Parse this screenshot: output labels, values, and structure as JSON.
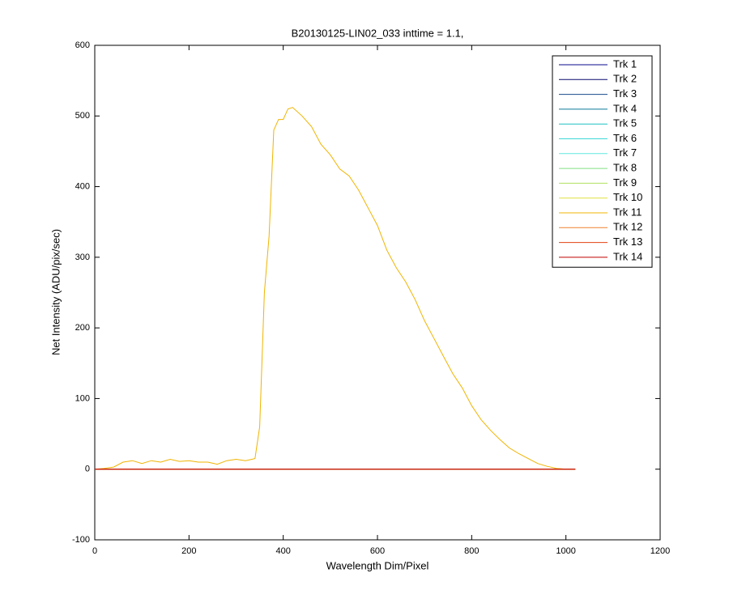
{
  "chart_data": {
    "type": "line",
    "title": "B20130125-LIN02_033 inttime = 1.1,",
    "x_label": "Wavelength Dim/Pixel",
    "y_label": "Net Intensity (ADU/pix/sec)",
    "xlim": [
      0,
      1200
    ],
    "xticks": [
      0,
      200,
      400,
      600,
      800,
      1000,
      1200
    ],
    "ylim": [
      -100,
      600
    ],
    "yticks": [
      -100,
      0,
      100,
      200,
      300,
      400,
      500,
      600
    ],
    "legend": "top-right",
    "x": [
      0,
      20,
      40,
      60,
      80,
      100,
      120,
      140,
      160,
      180,
      200,
      220,
      240,
      260,
      280,
      300,
      320,
      340,
      350,
      360,
      370,
      380,
      390,
      400,
      410,
      420,
      440,
      460,
      480,
      500,
      520,
      540,
      560,
      580,
      600,
      620,
      640,
      660,
      680,
      700,
      720,
      740,
      760,
      780,
      800,
      820,
      840,
      860,
      880,
      900,
      920,
      940,
      960,
      980,
      1000,
      1020
    ],
    "series": [
      {
        "name": "Trk 1",
        "color": "#0a0a8c",
        "values": [
          0,
          0,
          0,
          0,
          0,
          0,
          0,
          0,
          0,
          0,
          0,
          0,
          0,
          0,
          0,
          0,
          0,
          0,
          0,
          0,
          0,
          0,
          0,
          0,
          0,
          0,
          0,
          0,
          0,
          0,
          0,
          0,
          0,
          0,
          0,
          0,
          0,
          0,
          0,
          0,
          0,
          0,
          0,
          0,
          0,
          0,
          0,
          0,
          0,
          0,
          0,
          0,
          0,
          0,
          0,
          0
        ]
      },
      {
        "name": "Trk 2",
        "color": "#0a0a70",
        "values": [
          0,
          0,
          0,
          0,
          0,
          0,
          0,
          0,
          0,
          0,
          0,
          0,
          0,
          0,
          0,
          0,
          0,
          0,
          0,
          0,
          0,
          0,
          0,
          0,
          0,
          0,
          0,
          0,
          0,
          0,
          0,
          0,
          0,
          0,
          0,
          0,
          0,
          0,
          0,
          0,
          0,
          0,
          0,
          0,
          0,
          0,
          0,
          0,
          0,
          0,
          0,
          0,
          0,
          0,
          0,
          0
        ]
      },
      {
        "name": "Trk 3",
        "color": "#1a4a8a",
        "values": [
          0,
          0,
          0,
          0,
          0,
          0,
          0,
          0,
          0,
          0,
          0,
          0,
          0,
          0,
          0,
          0,
          0,
          0,
          0,
          0,
          0,
          0,
          0,
          0,
          0,
          0,
          0,
          0,
          0,
          0,
          0,
          0,
          0,
          0,
          0,
          0,
          0,
          0,
          0,
          0,
          0,
          0,
          0,
          0,
          0,
          0,
          0,
          0,
          0,
          0,
          0,
          0,
          0,
          0,
          0,
          0
        ]
      },
      {
        "name": "Trk 4",
        "color": "#0a7a9a",
        "values": [
          0,
          0,
          0,
          0,
          0,
          0,
          0,
          0,
          0,
          0,
          0,
          0,
          0,
          0,
          0,
          0,
          0,
          0,
          0,
          0,
          0,
          0,
          0,
          0,
          0,
          0,
          0,
          0,
          0,
          0,
          0,
          0,
          0,
          0,
          0,
          0,
          0,
          0,
          0,
          0,
          0,
          0,
          0,
          0,
          0,
          0,
          0,
          0,
          0,
          0,
          0,
          0,
          0,
          0,
          0,
          0
        ]
      },
      {
        "name": "Trk 5",
        "color": "#20c0c0",
        "values": [
          0,
          0,
          0,
          0,
          0,
          0,
          0,
          0,
          0,
          0,
          0,
          0,
          0,
          0,
          0,
          0,
          0,
          0,
          0,
          0,
          0,
          0,
          0,
          0,
          0,
          0,
          0,
          0,
          0,
          0,
          0,
          0,
          0,
          0,
          0,
          0,
          0,
          0,
          0,
          0,
          0,
          0,
          0,
          0,
          0,
          0,
          0,
          0,
          0,
          0,
          0,
          0,
          0,
          0,
          0,
          0
        ]
      },
      {
        "name": "Trk 6",
        "color": "#40d8d8",
        "values": [
          0,
          0,
          0,
          0,
          0,
          0,
          0,
          0,
          0,
          0,
          0,
          0,
          0,
          0,
          0,
          0,
          0,
          0,
          0,
          0,
          0,
          0,
          0,
          0,
          0,
          0,
          0,
          0,
          0,
          0,
          0,
          0,
          0,
          0,
          0,
          0,
          0,
          0,
          0,
          0,
          0,
          0,
          0,
          0,
          0,
          0,
          0,
          0,
          0,
          0,
          0,
          0,
          0,
          0,
          0,
          0
        ]
      },
      {
        "name": "Trk 7",
        "color": "#60e8e0",
        "values": [
          0,
          0,
          0,
          0,
          0,
          0,
          0,
          0,
          0,
          0,
          0,
          0,
          0,
          0,
          0,
          0,
          0,
          0,
          0,
          0,
          0,
          0,
          0,
          0,
          0,
          0,
          0,
          0,
          0,
          0,
          0,
          0,
          0,
          0,
          0,
          0,
          0,
          0,
          0,
          0,
          0,
          0,
          0,
          0,
          0,
          0,
          0,
          0,
          0,
          0,
          0,
          0,
          0,
          0,
          0,
          0
        ]
      },
      {
        "name": "Trk 8",
        "color": "#80e080",
        "values": [
          0,
          0,
          0,
          0,
          0,
          0,
          0,
          0,
          0,
          0,
          0,
          0,
          0,
          0,
          0,
          0,
          0,
          0,
          0,
          0,
          0,
          0,
          0,
          0,
          0,
          0,
          0,
          0,
          0,
          0,
          0,
          0,
          0,
          0,
          0,
          0,
          0,
          0,
          0,
          0,
          0,
          0,
          0,
          0,
          0,
          0,
          0,
          0,
          0,
          0,
          0,
          0,
          0,
          0,
          0,
          0
        ]
      },
      {
        "name": "Trk 9",
        "color": "#b0e060",
        "values": [
          0,
          0,
          0,
          0,
          0,
          0,
          0,
          0,
          0,
          0,
          0,
          0,
          0,
          0,
          0,
          0,
          0,
          0,
          0,
          0,
          0,
          0,
          0,
          0,
          0,
          0,
          0,
          0,
          0,
          0,
          0,
          0,
          0,
          0,
          0,
          0,
          0,
          0,
          0,
          0,
          0,
          0,
          0,
          0,
          0,
          0,
          0,
          0,
          0,
          0,
          0,
          0,
          0,
          0,
          0,
          0
        ]
      },
      {
        "name": "Trk 10",
        "color": "#e0e040",
        "values": [
          0,
          0,
          0,
          0,
          0,
          0,
          0,
          0,
          0,
          0,
          0,
          0,
          0,
          0,
          0,
          0,
          0,
          0,
          0,
          0,
          0,
          0,
          0,
          0,
          0,
          0,
          0,
          0,
          0,
          0,
          0,
          0,
          0,
          0,
          0,
          0,
          0,
          0,
          0,
          0,
          0,
          0,
          0,
          0,
          0,
          0,
          0,
          0,
          0,
          0,
          0,
          0,
          0,
          0,
          0,
          0
        ]
      },
      {
        "name": "Trk 11",
        "color": "#f0b400",
        "values": [
          0,
          1,
          3,
          10,
          12,
          8,
          12,
          10,
          14,
          11,
          12,
          10,
          10,
          7,
          12,
          14,
          12,
          15,
          60,
          250,
          330,
          480,
          495,
          495,
          510,
          512,
          500,
          485,
          460,
          445,
          425,
          415,
          395,
          370,
          345,
          310,
          285,
          265,
          240,
          210,
          185,
          160,
          135,
          115,
          90,
          70,
          55,
          42,
          30,
          22,
          15,
          8,
          4,
          1,
          0,
          0
        ]
      },
      {
        "name": "Trk 12",
        "color": "#f08030",
        "values": [
          0,
          0,
          0,
          0,
          0,
          0,
          0,
          0,
          0,
          0,
          0,
          0,
          0,
          0,
          0,
          0,
          0,
          0,
          0,
          0,
          0,
          0,
          0,
          0,
          0,
          0,
          0,
          0,
          0,
          0,
          0,
          0,
          0,
          0,
          0,
          0,
          0,
          0,
          0,
          0,
          0,
          0,
          0,
          0,
          0,
          0,
          0,
          0,
          0,
          0,
          0,
          0,
          0,
          0,
          0,
          0
        ]
      },
      {
        "name": "Trk 13",
        "color": "#e04010",
        "values": [
          0,
          0,
          0,
          0,
          0,
          0,
          0,
          0,
          0,
          0,
          0,
          0,
          0,
          0,
          0,
          0,
          0,
          0,
          0,
          0,
          0,
          0,
          0,
          0,
          0,
          0,
          0,
          0,
          0,
          0,
          0,
          0,
          0,
          0,
          0,
          0,
          0,
          0,
          0,
          0,
          0,
          0,
          0,
          0,
          0,
          0,
          0,
          0,
          0,
          0,
          0,
          0,
          0,
          0,
          0,
          0
        ]
      },
      {
        "name": "Trk 14",
        "color": "#c00000",
        "values": [
          0,
          0,
          0,
          0,
          0,
          0,
          0,
          0,
          0,
          0,
          0,
          0,
          0,
          0,
          0,
          0,
          0,
          0,
          0,
          0,
          0,
          0,
          0,
          0,
          0,
          0,
          0,
          0,
          0,
          0,
          0,
          0,
          0,
          0,
          0,
          0,
          0,
          0,
          0,
          0,
          0,
          0,
          0,
          0,
          0,
          0,
          0,
          0,
          0,
          0,
          0,
          0,
          0,
          0,
          0,
          0
        ]
      }
    ]
  }
}
